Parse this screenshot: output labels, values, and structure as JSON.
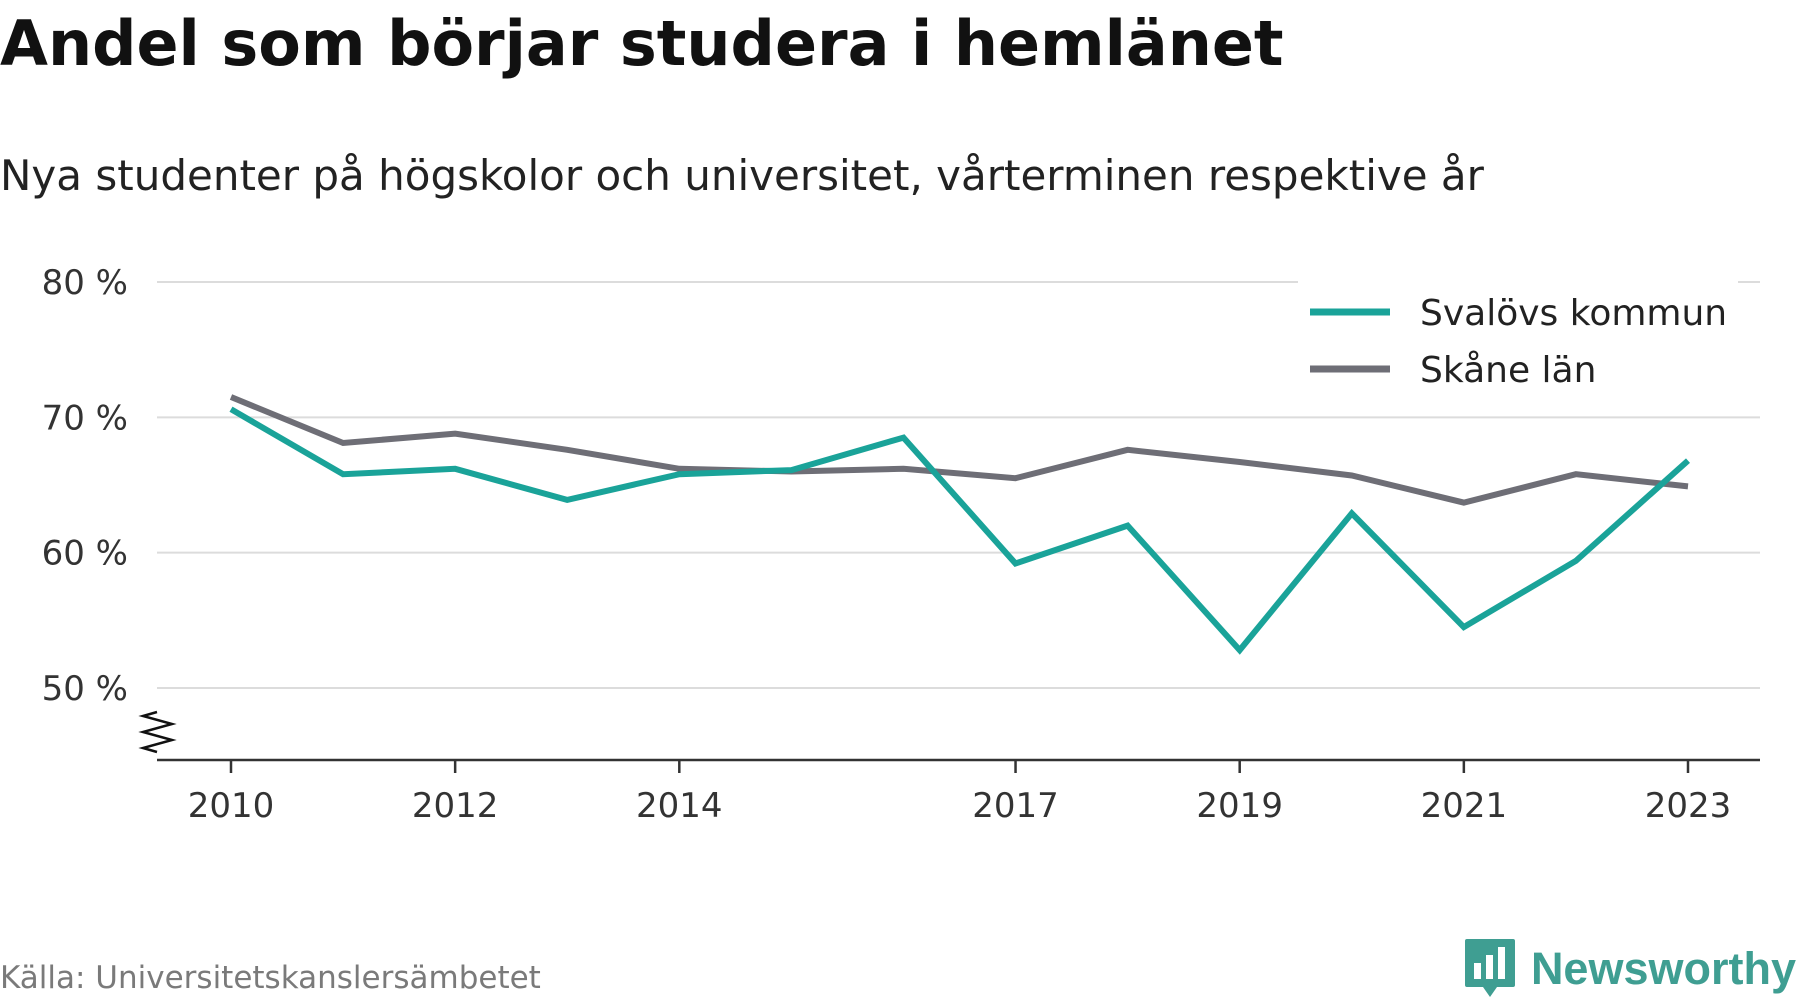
{
  "title": "Andel som börjar studera i hemlänet",
  "subtitle": "Nya studenter på högskolor och universitet, vårterminen respektive år",
  "source": "Källa: Universitetskanslersämbetet",
  "brand": {
    "name": "Newsworthy",
    "icon": "bar-chart-speech-bubble-icon",
    "color": "#3f9e92"
  },
  "chart_data": {
    "type": "line",
    "x": [
      2010,
      2011,
      2012,
      2013,
      2014,
      2015,
      2016,
      2017,
      2018,
      2019,
      2020,
      2021,
      2022,
      2023
    ],
    "x_tick_values": [
      2010,
      2012,
      2014,
      2017,
      2019,
      2021,
      2023
    ],
    "x_tick_labels": [
      "2010",
      "2012",
      "2014",
      "2017",
      "2019",
      "2021",
      "2023"
    ],
    "y_tick_values": [
      50,
      60,
      70,
      80
    ],
    "y_tick_labels": [
      "50 %",
      "60 %",
      "70 %",
      "80 %"
    ],
    "ylim": [
      45,
      80
    ],
    "y_axis_break": true,
    "grid": "horizontal",
    "legend_position": "top-right",
    "series": [
      {
        "name": "Svalövs kommun",
        "color": "#1aa399",
        "values": [
          70.6,
          65.8,
          66.2,
          63.9,
          65.8,
          66.1,
          68.5,
          59.2,
          62.0,
          52.8,
          62.9,
          54.5,
          59.4,
          66.8
        ]
      },
      {
        "name": "Skåne län",
        "color": "#6e6e76",
        "values": [
          71.5,
          68.1,
          68.8,
          67.6,
          66.2,
          66.0,
          66.2,
          65.5,
          67.6,
          66.7,
          65.7,
          63.7,
          65.8,
          64.9
        ]
      }
    ]
  }
}
